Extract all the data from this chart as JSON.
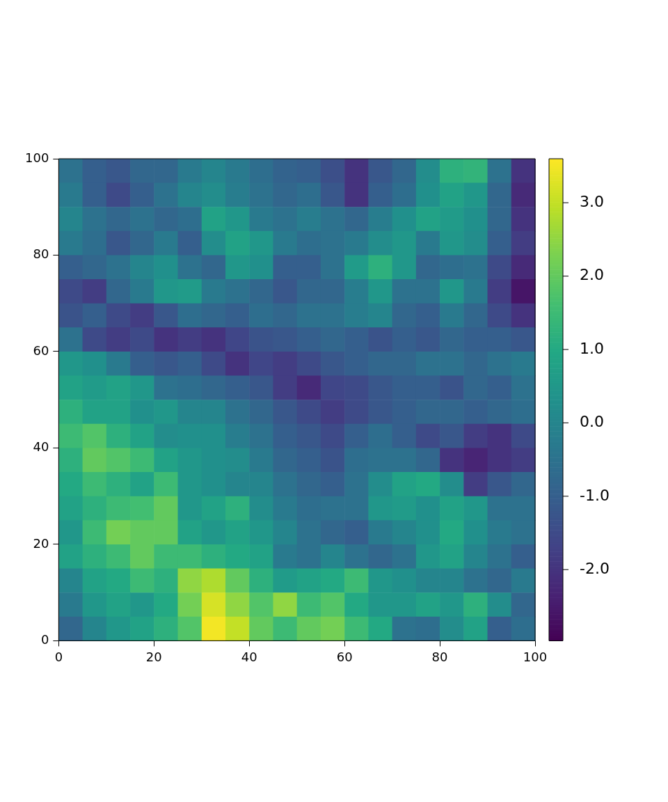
{
  "chart_data": {
    "type": "heatmap",
    "x": [
      2.5,
      7.5,
      12.5,
      17.5,
      22.5,
      27.5,
      32.5,
      37.5,
      42.5,
      47.5,
      52.5,
      57.5,
      62.5,
      67.5,
      72.5,
      77.5,
      82.5,
      87.5,
      92.5,
      97.5
    ],
    "xlim": [
      0,
      100
    ],
    "ylim": [
      0,
      100
    ],
    "xticks": [
      0,
      20,
      40,
      60,
      80,
      100
    ],
    "yticks": [
      0,
      20,
      40,
      60,
      80,
      100
    ],
    "clim": [
      -2.97,
      3.6
    ],
    "cticks": [
      {
        "value": -2,
        "label": "-2.0"
      },
      {
        "value": -1,
        "label": "-1.0"
      },
      {
        "value": 0,
        "label": "0.0"
      },
      {
        "value": 1,
        "label": "1.0"
      },
      {
        "value": 2,
        "label": "2.0"
      },
      {
        "value": 3,
        "label": "3.0"
      }
    ],
    "grid": false,
    "cells": [
      [
        -0.5,
        -1.0,
        -1.2,
        -0.8,
        -0.8,
        -0.3,
        0.0,
        -0.3,
        -0.6,
        -0.9,
        -1.0,
        -1.4,
        -2.0,
        -1.2,
        -0.8,
        0.2,
        1.2,
        1.3,
        -0.5,
        -2.0
      ],
      [
        -0.3,
        -1.0,
        -1.5,
        -1.0,
        -0.5,
        0.0,
        0.2,
        -0.2,
        -0.5,
        -0.8,
        -0.6,
        -1.2,
        -2.0,
        -1.0,
        -0.6,
        0.3,
        0.8,
        0.5,
        -0.8,
        -2.2
      ],
      [
        0.0,
        -0.5,
        -0.8,
        -0.5,
        -0.8,
        -0.6,
        0.8,
        0.5,
        -0.3,
        -0.5,
        -0.2,
        -0.5,
        -0.8,
        -0.2,
        0.3,
        0.8,
        0.6,
        0.3,
        -0.8,
        -2.0
      ],
      [
        -0.3,
        -0.6,
        -1.2,
        -0.8,
        -0.3,
        -1.0,
        0.2,
        0.8,
        0.5,
        -0.3,
        -0.6,
        -0.5,
        -0.3,
        0.2,
        0.5,
        -0.3,
        0.5,
        0.2,
        -1.0,
        -1.8
      ],
      [
        -1.0,
        -0.8,
        -0.5,
        0.0,
        0.3,
        -0.5,
        -0.8,
        0.5,
        0.3,
        -1.0,
        -1.0,
        -0.5,
        0.6,
        1.2,
        0.5,
        -0.8,
        -0.6,
        -0.5,
        -1.5,
        -2.2
      ],
      [
        -1.5,
        -1.8,
        -0.8,
        -0.3,
        0.5,
        0.6,
        -0.3,
        -0.5,
        -0.8,
        -1.2,
        -0.8,
        -0.8,
        -0.2,
        0.5,
        -0.5,
        -0.5,
        0.5,
        -0.3,
        -1.8,
        -2.6
      ],
      [
        -1.3,
        -1.0,
        -1.5,
        -1.8,
        -1.2,
        -0.6,
        -0.8,
        -1.0,
        -0.6,
        -0.8,
        -0.5,
        -0.5,
        -0.2,
        0.0,
        -0.8,
        -1.0,
        -0.3,
        -0.8,
        -1.5,
        -2.0
      ],
      [
        -0.5,
        -1.5,
        -1.8,
        -1.5,
        -2.0,
        -1.8,
        -2.0,
        -1.6,
        -1.3,
        -1.2,
        -1.0,
        -0.8,
        -1.0,
        -1.3,
        -1.0,
        -1.2,
        -0.8,
        -1.0,
        -1.0,
        -1.2
      ],
      [
        0.5,
        0.3,
        -0.3,
        -1.0,
        -1.2,
        -1.0,
        -1.5,
        -2.0,
        -1.6,
        -1.8,
        -1.5,
        -1.2,
        -1.0,
        -0.8,
        -0.8,
        -0.5,
        -0.5,
        -0.8,
        -0.5,
        -0.3
      ],
      [
        0.8,
        0.6,
        0.8,
        0.5,
        -0.5,
        -0.6,
        -0.8,
        -1.0,
        -1.2,
        -1.8,
        -2.2,
        -1.6,
        -1.5,
        -1.2,
        -1.0,
        -1.0,
        -1.3,
        -0.8,
        -1.0,
        -0.5
      ],
      [
        1.2,
        0.8,
        0.8,
        0.3,
        0.5,
        0.0,
        0.0,
        -0.5,
        -0.8,
        -1.2,
        -1.5,
        -1.8,
        -1.5,
        -1.2,
        -1.0,
        -0.8,
        -0.8,
        -1.0,
        -0.8,
        -0.6
      ],
      [
        1.5,
        1.8,
        1.2,
        0.8,
        0.2,
        0.3,
        0.3,
        -0.2,
        -0.5,
        -1.0,
        -1.2,
        -1.5,
        -1.0,
        -0.6,
        -1.0,
        -1.5,
        -1.2,
        -1.8,
        -2.0,
        -1.5
      ],
      [
        1.2,
        2.0,
        1.8,
        1.5,
        0.8,
        0.5,
        0.3,
        0.2,
        -0.3,
        -0.8,
        -1.0,
        -1.3,
        -0.6,
        -0.5,
        -0.5,
        -0.8,
        -2.0,
        -2.3,
        -2.0,
        -1.8
      ],
      [
        1.0,
        1.5,
        1.2,
        0.8,
        1.5,
        0.5,
        0.3,
        0.0,
        0.0,
        -0.5,
        -0.8,
        -1.0,
        -0.5,
        0.2,
        0.8,
        1.0,
        0.2,
        -1.8,
        -1.2,
        -0.8
      ],
      [
        0.8,
        1.2,
        1.5,
        1.6,
        2.0,
        0.5,
        0.8,
        1.2,
        0.2,
        -0.3,
        -0.6,
        -0.5,
        -0.5,
        0.5,
        0.6,
        0.3,
        0.8,
        0.5,
        -0.5,
        -0.5
      ],
      [
        0.5,
        1.5,
        2.2,
        2.0,
        2.0,
        0.8,
        0.5,
        0.8,
        0.5,
        0.0,
        -0.5,
        -0.8,
        -1.0,
        -0.3,
        0.0,
        0.3,
        1.0,
        0.3,
        -0.3,
        -0.5
      ],
      [
        0.8,
        1.2,
        1.5,
        2.0,
        1.5,
        1.5,
        1.2,
        1.0,
        0.8,
        -0.3,
        -0.5,
        0.0,
        -0.5,
        -0.8,
        -0.5,
        0.5,
        0.8,
        0.0,
        -0.5,
        -1.0
      ],
      [
        0.0,
        0.8,
        1.0,
        1.5,
        1.2,
        2.5,
        2.8,
        2.0,
        1.2,
        0.6,
        0.8,
        1.0,
        1.5,
        0.5,
        0.3,
        0.0,
        0.0,
        -0.5,
        -0.8,
        -0.3
      ],
      [
        -0.3,
        0.5,
        0.8,
        0.5,
        1.0,
        2.2,
        3.2,
        2.5,
        1.8,
        2.5,
        1.5,
        1.8,
        1.0,
        0.5,
        0.5,
        0.8,
        0.5,
        1.2,
        0.2,
        -0.8
      ],
      [
        -0.8,
        0.0,
        0.5,
        0.8,
        1.2,
        1.8,
        3.5,
        3.0,
        2.0,
        1.5,
        2.0,
        2.2,
        1.5,
        1.0,
        -0.5,
        -0.6,
        0.2,
        0.8,
        -1.0,
        -0.6
      ]
    ]
  }
}
